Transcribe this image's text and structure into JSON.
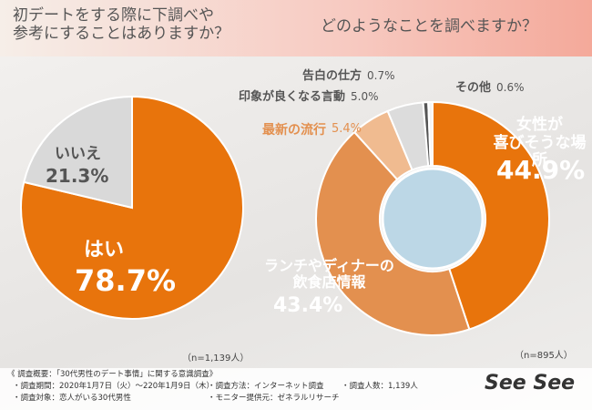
{
  "chart_data": [
    {
      "type": "pie",
      "title": "初デートをする際に下調べや\n参考にすることはありますか？",
      "categories": [
        "はい",
        "いいえ"
      ],
      "values": [
        78.7,
        21.3
      ],
      "value_labels": [
        "78.7%",
        "21.3%"
      ],
      "colors": [
        "#e8740c",
        "#d9d9d9"
      ],
      "note": "（n=1,139人）"
    },
    {
      "type": "donut",
      "title": "どのようなことを調べますか？",
      "categories": [
        "女性が\n喜びそうな場所",
        "ランチやディナーの\n飲食店情報",
        "最新の流行",
        "印象が良くなる言動",
        "告白の仕方",
        "その他"
      ],
      "values": [
        44.9,
        43.4,
        5.4,
        5.0,
        0.7,
        0.6
      ],
      "value_labels": [
        "44.9%",
        "43.4%",
        "5.4%",
        "5.0%",
        "0.7%",
        "0.6%"
      ],
      "colors": [
        "#e8740c",
        "#e3904f",
        "#f0bb90",
        "#dcdcdc",
        "#555555",
        "#f4f4f4"
      ],
      "note": "（n=895人）"
    }
  ],
  "footer": {
    "heading": "《 調査概要：「30代男性のデート事情」に関する意識調査》",
    "items": [
      "・調査期間：2020年1月7日（火）〜220年1月9日（木）",
      "・調査方法：インターネット調査",
      "・調査人数：1,139人",
      "・調査対象：恋人がいる30代男性",
      "・モニター提供元：ゼネラルリサーチ"
    ],
    "logo": "See See"
  }
}
